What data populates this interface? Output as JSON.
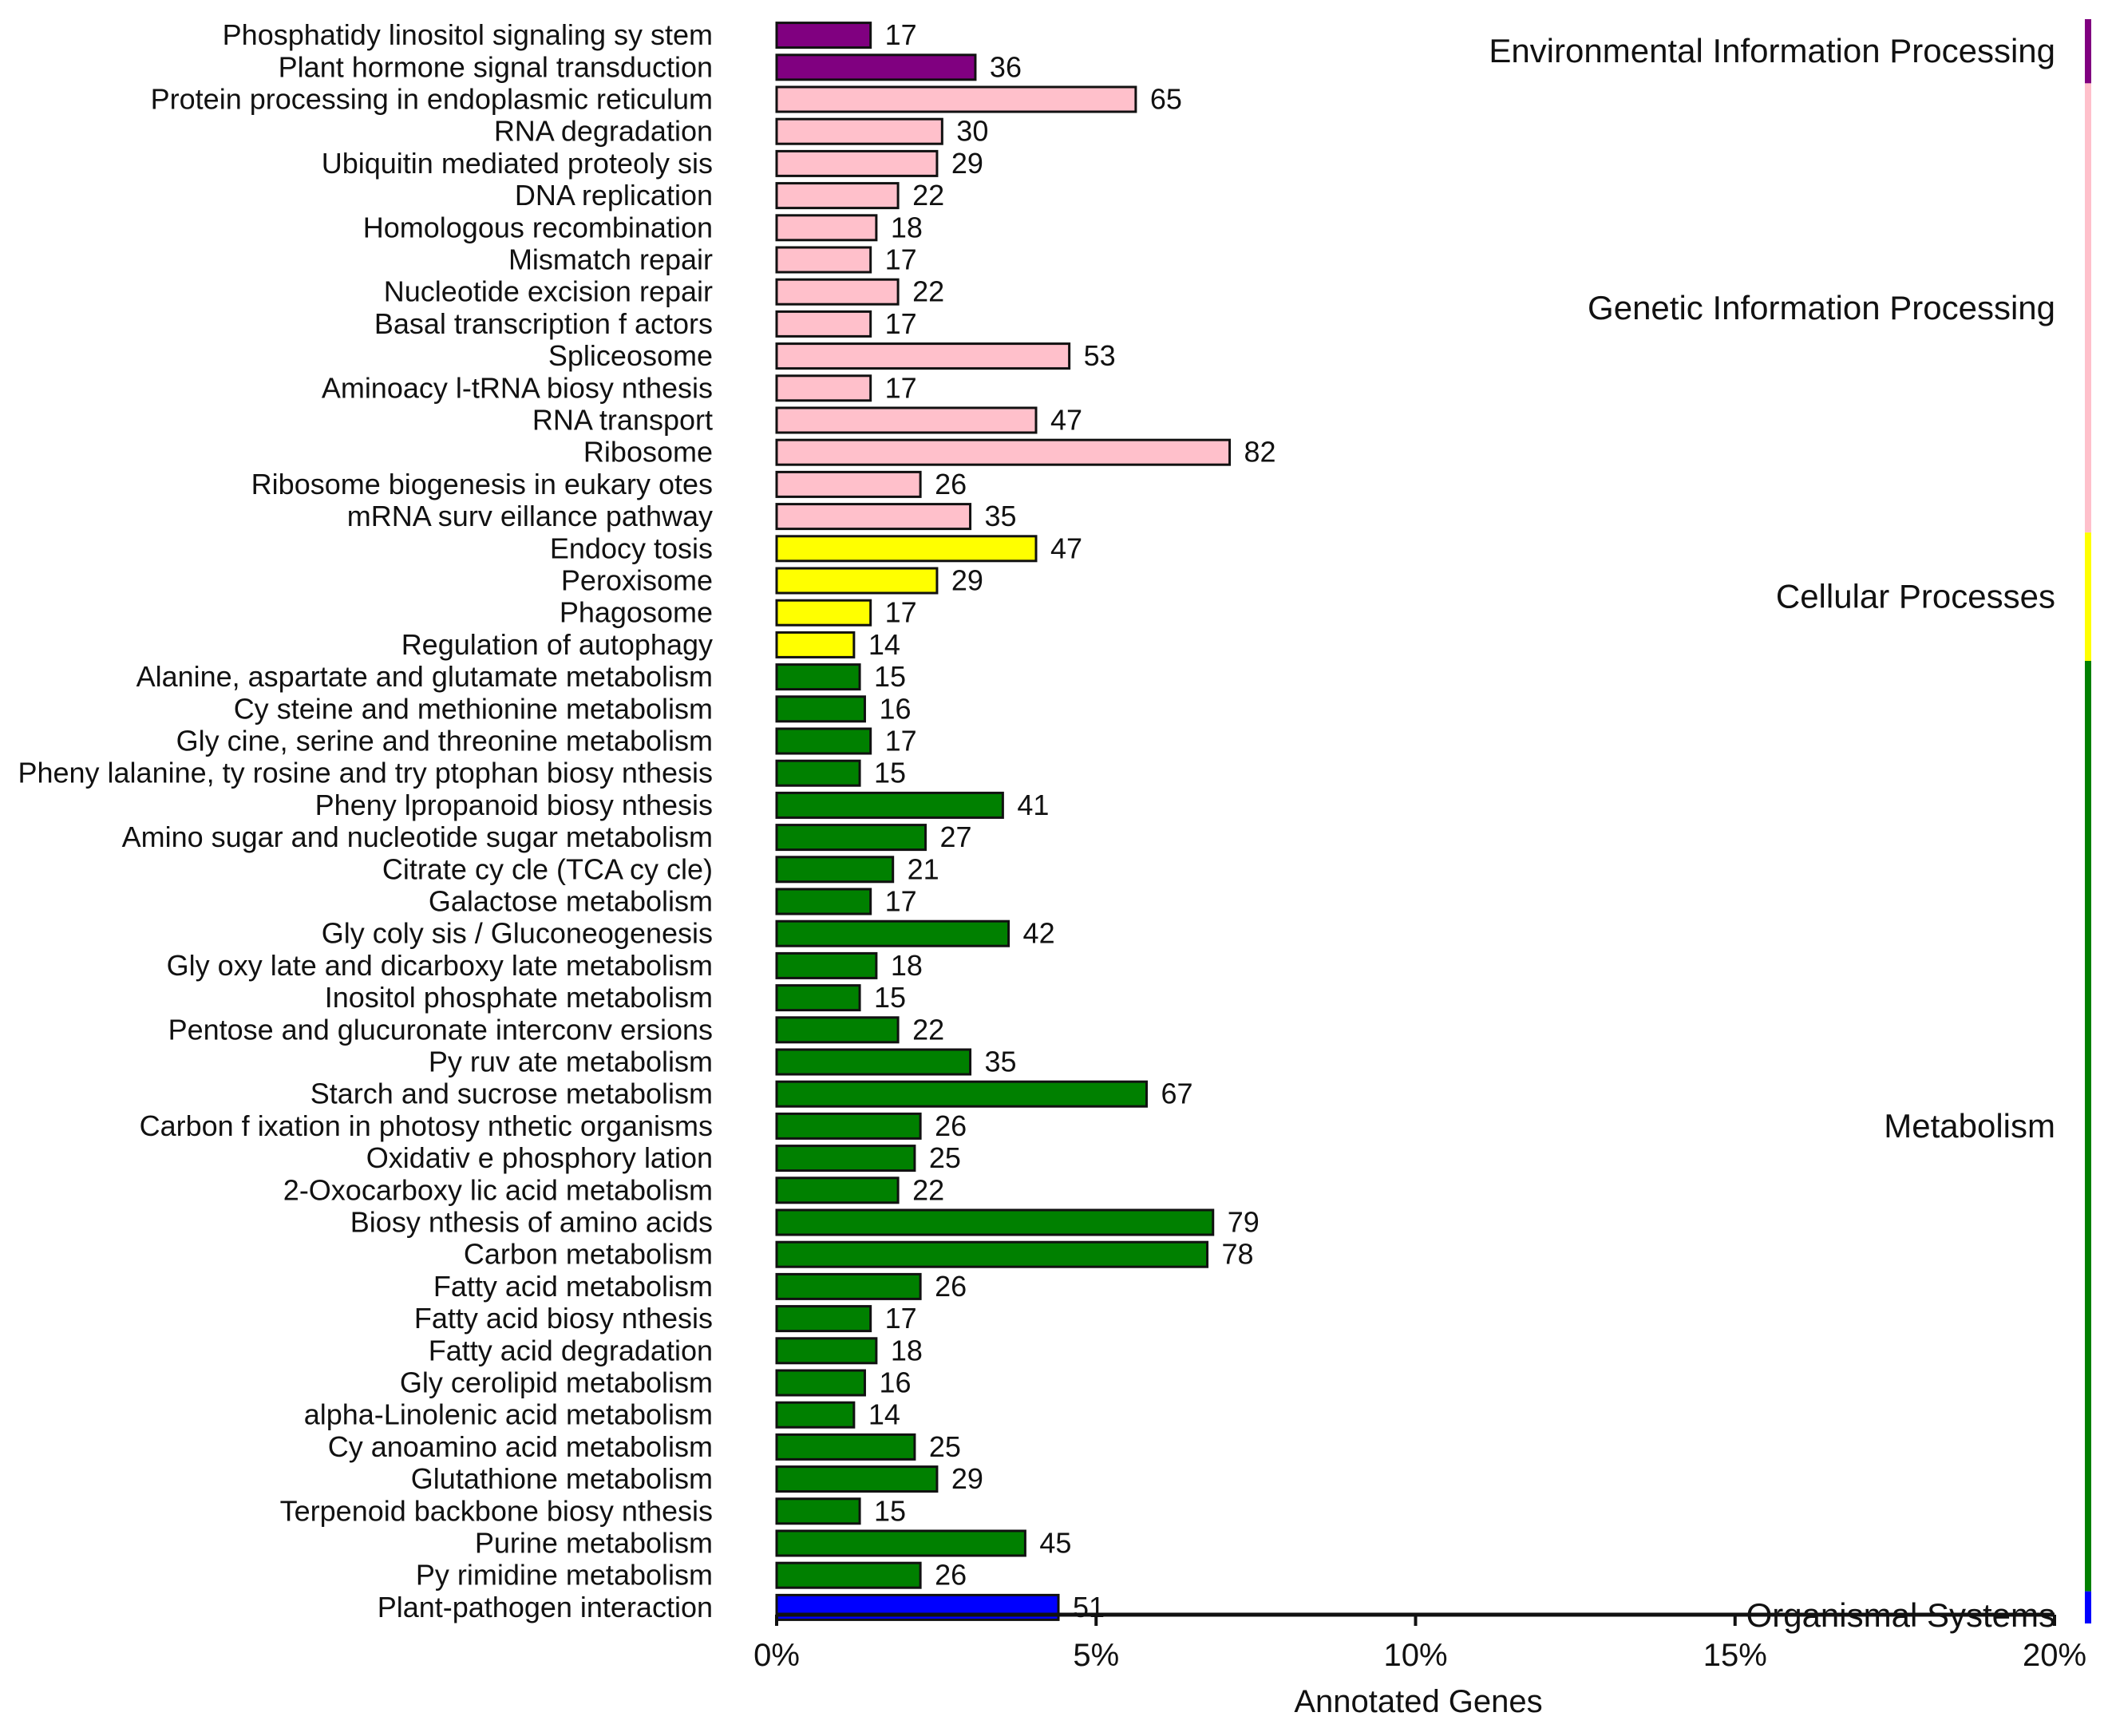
{
  "chart_data": {
    "type": "bar",
    "orientation": "horizontal",
    "xlabel": "Annotated Genes",
    "xlim": [
      0,
      20
    ],
    "xticks": [
      "0%",
      "5%",
      "10%",
      "15%",
      "20%"
    ],
    "grid": false,
    "categories": [
      "Phosphatidy linositol signaling sy stem",
      "Plant hormone signal transduction",
      "Protein processing in endoplasmic reticulum",
      "RNA degradation",
      "Ubiquitin mediated proteoly sis",
      "DNA replication",
      "Homologous recombination",
      "Mismatch repair",
      "Nucleotide excision repair",
      "Basal transcription f actors",
      "Spliceosome",
      "Aminoacy l-tRNA biosy nthesis",
      "RNA transport",
      "Ribosome",
      "Ribosome biogenesis in eukary otes",
      "mRNA surv eillance pathway",
      "Endocy tosis",
      "Peroxisome",
      "Phagosome",
      "Regulation of autophagy",
      "Alanine, aspartate and glutamate metabolism",
      "Cy steine and methionine metabolism",
      "Gly cine, serine and threonine metabolism",
      "Pheny lalanine, ty rosine and try ptophan biosy nthesis",
      "Pheny lpropanoid biosy nthesis",
      "Amino sugar and nucleotide sugar metabolism",
      "Citrate cy cle (TCA cy cle)",
      "Galactose metabolism",
      "Gly coly sis / Gluconeogenesis",
      "Gly oxy late and dicarboxy late metabolism",
      "Inositol phosphate metabolism",
      "Pentose and glucuronate interconv ersions",
      "Py ruv ate metabolism",
      "Starch and sucrose metabolism",
      "Carbon f ixation in photosy nthetic organisms",
      "Oxidativ e phosphory lation",
      "2-Oxocarboxy lic acid metabolism",
      "Biosy nthesis of amino acids",
      "Carbon metabolism",
      "Fatty acid metabolism",
      "Fatty acid biosy nthesis",
      "Fatty acid degradation",
      "Gly cerolipid metabolism",
      "alpha-Linolenic acid metabolism",
      "Cy anoamino acid metabolism",
      "Glutathione metabolism",
      "Terpenoid backbone biosy nthesis",
      "Purine metabolism",
      "Py rimidine metabolism",
      "Plant-pathogen interaction"
    ],
    "gene_counts": [
      17,
      36,
      65,
      30,
      29,
      22,
      18,
      17,
      22,
      17,
      53,
      17,
      47,
      82,
      26,
      35,
      47,
      29,
      17,
      14,
      15,
      16,
      17,
      15,
      41,
      27,
      21,
      17,
      42,
      18,
      15,
      22,
      35,
      67,
      26,
      25,
      22,
      79,
      78,
      26,
      17,
      18,
      16,
      14,
      25,
      29,
      15,
      45,
      26,
      51
    ],
    "percent_values": [
      1.47,
      3.11,
      5.62,
      2.59,
      2.51,
      1.9,
      1.56,
      1.47,
      1.9,
      1.47,
      4.58,
      1.47,
      4.06,
      7.09,
      2.25,
      3.03,
      4.06,
      2.51,
      1.47,
      1.21,
      1.3,
      1.38,
      1.47,
      1.3,
      3.54,
      2.33,
      1.82,
      1.47,
      3.63,
      1.56,
      1.3,
      1.9,
      3.03,
      5.79,
      2.25,
      2.16,
      1.9,
      6.83,
      6.74,
      2.25,
      1.47,
      1.56,
      1.38,
      1.21,
      2.16,
      2.51,
      1.3,
      3.89,
      2.25,
      4.41
    ],
    "groups": [
      {
        "name": "Environmental Information Processing",
        "start": 0,
        "count": 2,
        "color": "#800080"
      },
      {
        "name": "Genetic Information Processing",
        "start": 2,
        "count": 14,
        "color": "#ffc0cb"
      },
      {
        "name": "Cellular Processes",
        "start": 16,
        "count": 4,
        "color": "#ffff00"
      },
      {
        "name": "Metabolism",
        "start": 20,
        "count": 29,
        "color": "#008000"
      },
      {
        "name": "Organismal Systems",
        "start": 49,
        "count": 1,
        "color": "#0000ff"
      }
    ]
  }
}
